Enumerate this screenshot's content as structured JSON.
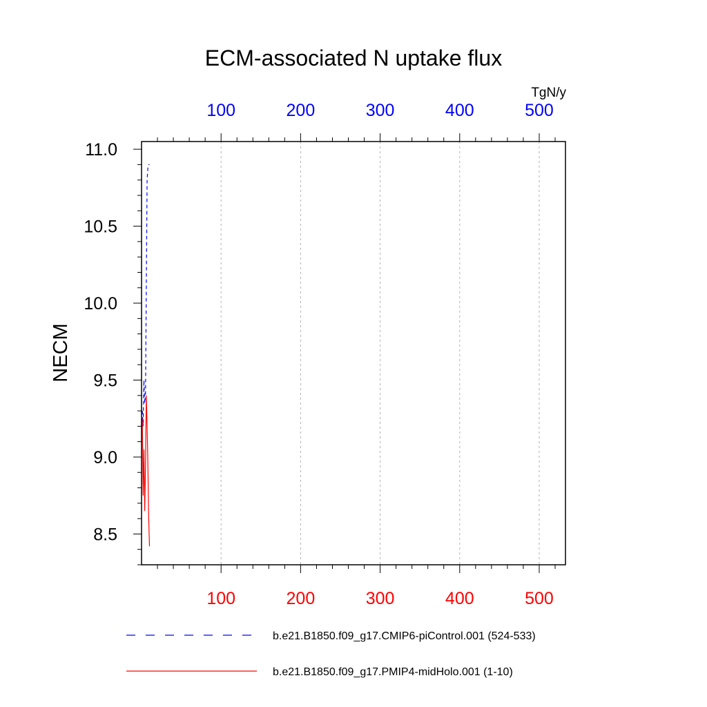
{
  "chart_data": {
    "type": "line",
    "title": "ECM-associated N uptake flux",
    "ylabel": "NECM",
    "units": "TgN/y",
    "ylim": [
      8.3,
      11.05
    ],
    "yticks": [
      8.5,
      9.0,
      9.5,
      10.0,
      10.5,
      11.0
    ],
    "ytick_labels": [
      "8.5",
      "9.0",
      "9.5",
      "10.0",
      "10.5",
      "11.0"
    ],
    "xlim": [
      0,
      533
    ],
    "xticks": [
      100,
      200,
      300,
      400,
      500
    ],
    "xtick_labels_bottom": [
      "100",
      "200",
      "300",
      "400",
      "500"
    ],
    "xtick_labels_top": [
      "100",
      "200",
      "300",
      "400",
      "500"
    ],
    "grid_x": true,
    "legend_position": "bottom",
    "series": [
      {
        "name": "b.e21.B1850.f09_g17.CMIP6-piControl.001 (524-533)",
        "color": "#0000ff",
        "style": "dashed",
        "axis": "top",
        "x": [
          1,
          2,
          3,
          4,
          5,
          6,
          7,
          8,
          9,
          10
        ],
        "values": [
          9.3,
          9.2,
          9.5,
          9.35,
          9.4,
          10.1,
          10.8,
          10.88,
          10.9,
          10.9
        ]
      },
      {
        "name": "b.e21.B1850.f09_g17.PMIP4-midHolo.001 (1-10)",
        "color": "#ff0000",
        "style": "solid",
        "axis": "bottom",
        "x": [
          1,
          2,
          3,
          4,
          5,
          6,
          7,
          8,
          9,
          10
        ],
        "values": [
          9.25,
          8.75,
          9.05,
          8.65,
          8.95,
          9.4,
          9.2,
          8.95,
          8.6,
          8.42
        ]
      }
    ]
  }
}
